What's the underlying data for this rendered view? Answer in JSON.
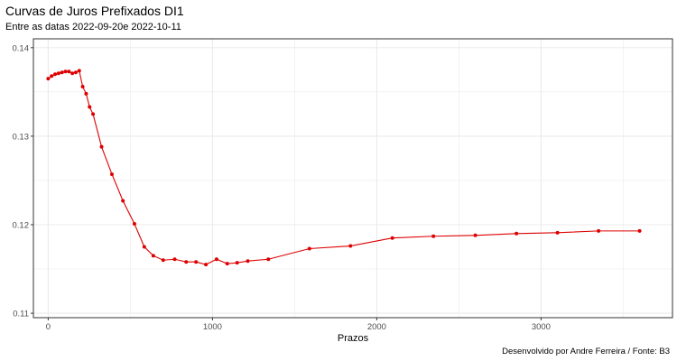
{
  "chart_data": {
    "type": "line",
    "title": "Curvas de Juros Prefixados DI1",
    "subtitle": "Entre as datas 2022-09-20e 2022-10-11",
    "xlabel": "Prazos",
    "ylabel": "",
    "caption": "Desenvolvido por Andre Ferreira / Fonte: B3",
    "xlim": [
      -90,
      3800
    ],
    "ylim": [
      0.1095,
      0.141
    ],
    "x_ticks": [
      0,
      1000,
      2000,
      3000
    ],
    "x_tick_labels": [
      "0",
      "1000",
      "2000",
      "3000"
    ],
    "y_ticks": [
      0.11,
      0.12,
      0.13,
      0.14
    ],
    "y_tick_labels": [
      "0.11",
      "0.12",
      "0.13",
      "0.14"
    ],
    "grid": true,
    "series": [
      {
        "name": "DI1",
        "color": "#dd0000",
        "x": [
          0,
          21,
          42,
          63,
          84,
          105,
          126,
          147,
          168,
          189,
          210,
          231,
          252,
          273,
          325,
          388,
          455,
          525,
          585,
          640,
          700,
          770,
          840,
          900,
          960,
          1025,
          1090,
          1150,
          1215,
          1340,
          1590,
          1840,
          2095,
          2345,
          2600,
          2850,
          3100,
          3350,
          3600
        ],
        "values": [
          0.1365,
          0.1368,
          0.137,
          0.1371,
          0.1372,
          0.1373,
          0.1373,
          0.1371,
          0.1372,
          0.1374,
          0.1356,
          0.1348,
          0.1333,
          0.1325,
          0.1288,
          0.1257,
          0.1227,
          0.1201,
          0.1175,
          0.1165,
          0.116,
          0.1161,
          0.1158,
          0.1158,
          0.1155,
          0.1161,
          0.1156,
          0.1157,
          0.1159,
          0.1161,
          0.1173,
          0.1176,
          0.1185,
          0.1187,
          0.1188,
          0.119,
          0.1191,
          0.1193,
          0.1193
        ]
      }
    ]
  },
  "colors": {
    "panel_border": "#333333",
    "grid": "#ebebeb",
    "line": "#dd0000"
  }
}
